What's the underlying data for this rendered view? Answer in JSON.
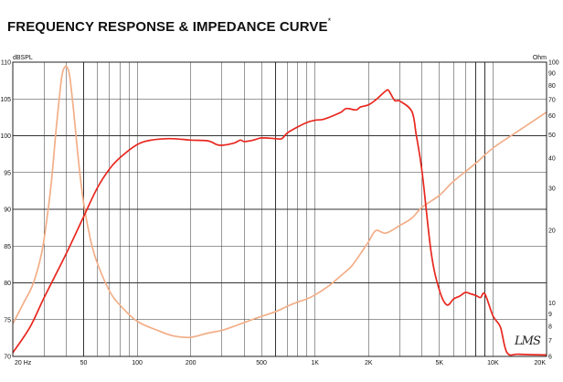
{
  "title": "FREQUENCY RESPONSE & IMPEDANCE CURVE",
  "title_mark": "*",
  "logo_text": "LMS",
  "chart_data": {
    "type": "line",
    "title": "FREQUENCY RESPONSE & IMPEDANCE CURVE",
    "xlabel": "Hz",
    "ylabel": "dBSPL",
    "y2label": "Ohm",
    "xscale": "log",
    "xlim": [
      20,
      20000
    ],
    "ylim": [
      70,
      110
    ],
    "y2lim": [
      6,
      100
    ],
    "y2scale": "log",
    "grid": true,
    "x_ticks": [
      {
        "v": 20,
        "label": "20 Hz"
      },
      {
        "v": 50,
        "label": "50"
      },
      {
        "v": 100,
        "label": "100"
      },
      {
        "v": 200,
        "label": "200"
      },
      {
        "v": 500,
        "label": "500"
      },
      {
        "v": 1000,
        "label": "1K"
      },
      {
        "v": 2000,
        "label": "2K"
      },
      {
        "v": 5000,
        "label": "5K"
      },
      {
        "v": 10000,
        "label": "10K"
      },
      {
        "v": 20000,
        "label": "20K"
      }
    ],
    "y_ticks": [
      70,
      75,
      80,
      85,
      90,
      95,
      100,
      105,
      110
    ],
    "y2_ticks": [
      6,
      7,
      8,
      9,
      10,
      20,
      30,
      40,
      50,
      60,
      70,
      80,
      90,
      100
    ],
    "series": [
      {
        "name": "SPL",
        "axis": "left",
        "color": "#e8271f",
        "x": [
          20,
          25,
          30,
          40,
          50,
          60,
          70,
          80,
          100,
          120,
          150,
          180,
          200,
          250,
          280,
          300,
          350,
          380,
          400,
          450,
          500,
          600,
          650,
          700,
          800,
          900,
          1000,
          1100,
          1200,
          1400,
          1500,
          1700,
          1800,
          2000,
          2200,
          2500,
          2600,
          2800,
          3000,
          3500,
          3700,
          4000,
          4500,
          5000,
          5500,
          6000,
          6500,
          7000,
          7500,
          8000,
          8500,
          9000,
          10000,
          11000,
          12000,
          14000,
          20000
        ],
        "values": [
          70.5,
          74,
          78,
          84,
          89,
          93,
          95.5,
          97,
          98.8,
          99.4,
          99.6,
          99.5,
          99.4,
          99.3,
          98.8,
          98.7,
          99,
          99.4,
          99.2,
          99.4,
          99.7,
          99.6,
          99.6,
          100.4,
          101.2,
          101.8,
          102.1,
          102.2,
          102.5,
          103.2,
          103.7,
          103.5,
          103.9,
          104.2,
          104.9,
          106.1,
          106.1,
          104.8,
          104.7,
          103.3,
          100.2,
          95,
          84,
          79,
          77,
          77.8,
          78.2,
          78.7,
          78.5,
          78.3,
          78,
          78.5,
          75.5,
          74,
          70.5,
          70.3,
          70.2
        ]
      },
      {
        "name": "Impedance",
        "axis": "right",
        "color": "#f2ae87",
        "x": [
          20,
          23,
          26,
          29,
          31,
          33,
          35,
          37,
          38,
          39,
          40,
          41,
          42,
          44,
          47,
          50,
          55,
          60,
          70,
          80,
          100,
          130,
          160,
          200,
          250,
          300,
          350,
          400,
          500,
          600,
          700,
          800,
          900,
          1000,
          1200,
          1400,
          1600,
          1800,
          2000,
          2200,
          2500,
          3000,
          3500,
          4000,
          5000,
          6000,
          8000,
          10000,
          14000,
          20000
        ],
        "values": [
          8.2,
          10,
          12,
          16,
          22,
          32,
          52,
          78,
          90,
          95,
          96,
          93,
          85,
          62,
          38,
          26,
          18,
          14.5,
          11.2,
          9.8,
          8.4,
          7.7,
          7.3,
          7.2,
          7.5,
          7.7,
          8,
          8.3,
          8.8,
          9.2,
          9.7,
          10.1,
          10.4,
          10.8,
          11.8,
          13,
          14.2,
          16,
          18,
          20,
          19.5,
          21,
          22.5,
          25,
          28,
          32,
          38,
          44,
          52,
          62
        ]
      }
    ]
  }
}
